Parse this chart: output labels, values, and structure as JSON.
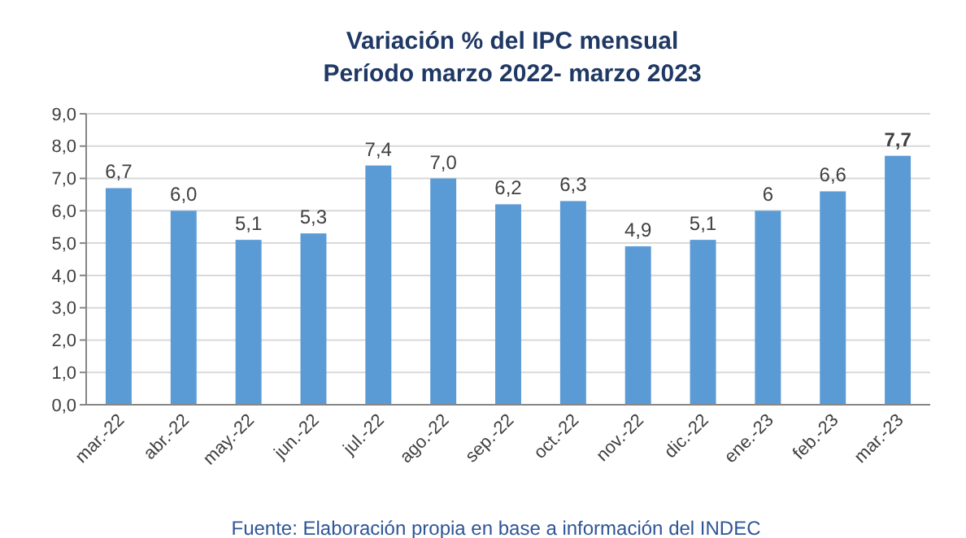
{
  "chart_data": {
    "type": "bar",
    "title": "Variación % del IPC mensual\nPeríodo marzo 2022- marzo 2023",
    "categories": [
      "mar.-22",
      "abr.-22",
      "may.-22",
      "jun.-22",
      "jul.-22",
      "ago.-22",
      "sep.-22",
      "oct.-22",
      "nov.-22",
      "dic.-22",
      "ene.-23",
      "feb.-23",
      "mar.-23"
    ],
    "values": [
      6.7,
      6.0,
      5.1,
      5.3,
      7.4,
      7.0,
      6.2,
      6.3,
      4.9,
      5.1,
      6.0,
      6.6,
      7.7
    ],
    "value_labels": [
      "6,7",
      "6,0",
      "5,1",
      "5,3",
      "7,4",
      "7,0",
      "6,2",
      "6,3",
      "4,9",
      "5,1",
      "6",
      "6,6",
      "7,7"
    ],
    "color": "#5b9bd5",
    "ylim": [
      0,
      9
    ],
    "yticks": [
      {
        "value": 0,
        "label": "0,0"
      },
      {
        "value": 1,
        "label": "1,0"
      },
      {
        "value": 2,
        "label": "2,0"
      },
      {
        "value": 3,
        "label": "3,0"
      },
      {
        "value": 4,
        "label": "4,0"
      },
      {
        "value": 5,
        "label": "5,0"
      },
      {
        "value": 6,
        "label": "6,0"
      },
      {
        "value": 7,
        "label": "7,0"
      },
      {
        "value": 8,
        "label": "8,0"
      },
      {
        "value": 9,
        "label": "9,0"
      }
    ],
    "grid": "y",
    "annotations": [
      "Fuente: Elaboración propia en base a información del INDEC"
    ]
  }
}
